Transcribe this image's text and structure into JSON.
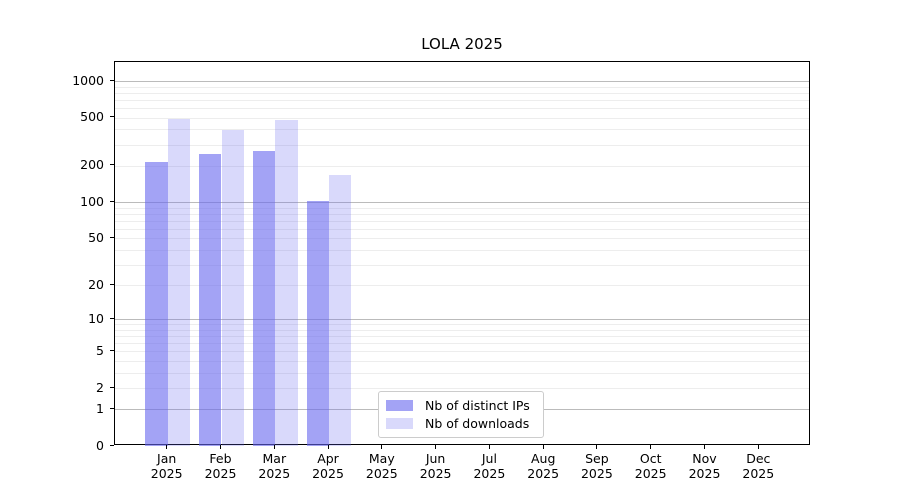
{
  "title": "LOLA 2025",
  "legend": {
    "items": [
      {
        "label": "Nb of distinct IPs",
        "color": "rgba(102,102,238,0.60)"
      },
      {
        "label": "Nb of downloads",
        "color": "rgba(102,102,238,0.25)"
      }
    ]
  },
  "chart_data": {
    "type": "bar",
    "title": "LOLA 2025",
    "categories": [
      "Jan",
      "Feb",
      "Mar",
      "Apr",
      "May",
      "Jun",
      "Jul",
      "Aug",
      "Sep",
      "Oct",
      "Nov",
      "Dec"
    ],
    "category_year": "2025",
    "series": [
      {
        "name": "Nb of distinct IPs",
        "color": "rgba(102,102,238,0.60)",
        "values": [
          216,
          252,
          265,
          103,
          null,
          null,
          null,
          null,
          null,
          null,
          null,
          null
        ]
      },
      {
        "name": "Nb of downloads",
        "color": "rgba(102,102,238,0.25)",
        "values": [
          489,
          394,
          481,
          168,
          null,
          null,
          null,
          null,
          null,
          null,
          null,
          null
        ]
      }
    ],
    "xlabel": "",
    "ylabel": "",
    "yaxis": {
      "scale": "log10(value+1)",
      "tick_labels": [
        1000,
        500,
        200,
        100,
        50,
        20,
        10,
        5,
        2,
        1,
        0
      ],
      "minor_gridline_values": [
        2,
        3,
        4,
        5,
        6,
        7,
        8,
        9,
        20,
        30,
        40,
        50,
        60,
        70,
        80,
        90,
        200,
        300,
        400,
        500,
        600,
        700,
        800,
        900
      ],
      "major_gridline_values": [
        1,
        10,
        100,
        1000
      ],
      "ylim": [
        0,
        1434
      ]
    },
    "grid": {
      "minor": true,
      "major": true
    },
    "legend_position": "lower center"
  },
  "colors": {
    "bar_dark": "rgba(102,102,238,0.60)",
    "bar_light": "rgba(102,102,238,0.25)",
    "grid_minor": "#ededed",
    "grid_major": "#bbbbbb",
    "axis": "#000000",
    "legend_border": "#cccccc",
    "background": "#ffffff"
  }
}
